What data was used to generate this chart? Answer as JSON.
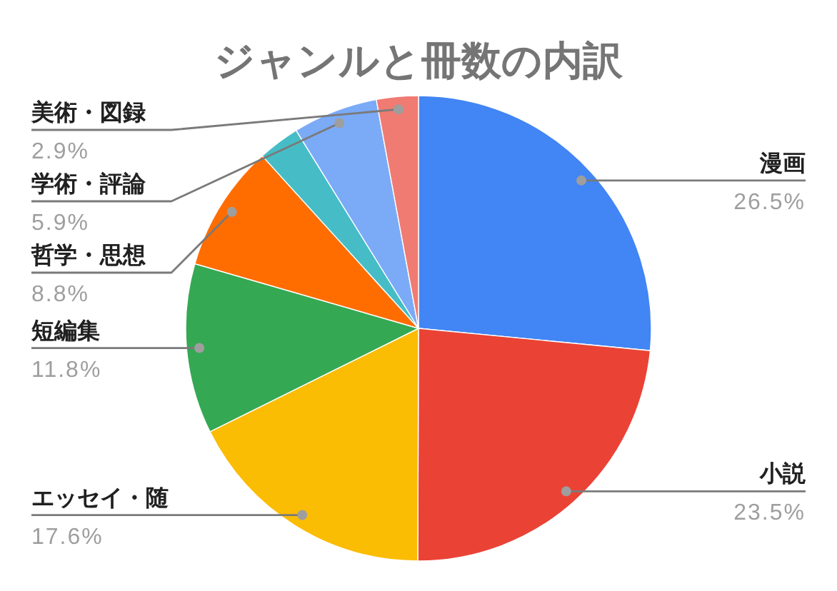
{
  "chart_data": {
    "type": "pie",
    "title": "ジャンルと冊数の内訳",
    "categories": [
      "漫画",
      "小説",
      "エッセイ・随",
      "短編集",
      "哲学・思想",
      null,
      "学術・評論",
      "美術・図録"
    ],
    "values": [
      26.5,
      23.5,
      17.6,
      11.8,
      8.8,
      2.9,
      5.9,
      2.9
    ],
    "colors": [
      "#4285f4",
      "#ea4335",
      "#fbbc04",
      "#34a853",
      "#ff6d01",
      "#46bdc6",
      "#7baaf7",
      "#f07b72"
    ],
    "value_labels": [
      "26.5%",
      "23.5%",
      "17.6%",
      "11.8%",
      "8.8%",
      null,
      "5.9%",
      "2.9%"
    ]
  }
}
